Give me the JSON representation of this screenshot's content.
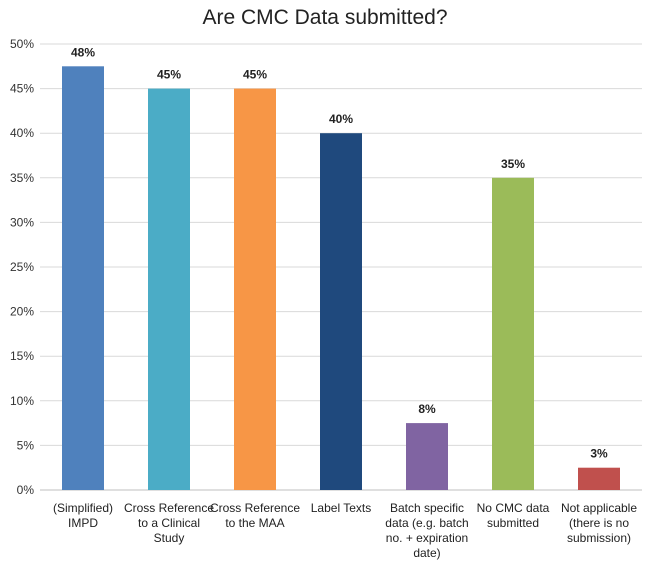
{
  "chart_data": {
    "type": "bar",
    "title": "Are CMC Data submitted?",
    "categories": [
      [
        "(Simplified)",
        "IMPD"
      ],
      [
        "Cross Reference",
        "to a Clinical",
        "Study"
      ],
      [
        "Cross Reference",
        "to the MAA"
      ],
      [
        "Label Texts"
      ],
      [
        "Batch specific",
        "data (e.g. batch",
        "no. + expiration",
        "date)"
      ],
      [
        "No CMC data",
        "submitted"
      ],
      [
        "Not applicable",
        "(there is no",
        "submission)"
      ]
    ],
    "values": [
      47.5,
      45,
      45,
      40,
      7.5,
      35,
      2.5
    ],
    "data_labels": [
      "48%",
      "45%",
      "45%",
      "40%",
      "8%",
      "35%",
      "3%"
    ],
    "colors": [
      "#4f81bd",
      "#4bacc6",
      "#f79646",
      "#1f497d",
      "#8064a2",
      "#9bbb59",
      "#c0504d"
    ],
    "ylim": [
      0,
      50
    ],
    "yticks": [
      0,
      5,
      10,
      15,
      20,
      25,
      30,
      35,
      40,
      45,
      50
    ],
    "ytick_labels": [
      "0%",
      "5%",
      "10%",
      "15%",
      "20%",
      "25%",
      "30%",
      "35%",
      "40%",
      "45%",
      "50%"
    ],
    "grid": true,
    "legend": "none",
    "xlabel": "",
    "ylabel": ""
  }
}
